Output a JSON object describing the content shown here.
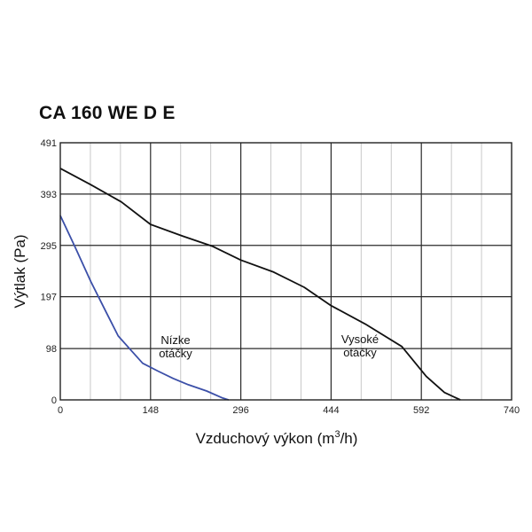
{
  "chart_data": {
    "type": "line",
    "title": "CA 160 WE D E",
    "xlabel_main": "Vzduchový výkon (m",
    "xlabel_sup": "3",
    "xlabel_end": "/h)",
    "ylabel": "Výtlak (Pa)",
    "xlim": [
      0,
      740
    ],
    "ylim": [
      0,
      491
    ],
    "x_ticks": [
      0,
      148,
      296,
      444,
      592,
      740
    ],
    "y_ticks": [
      0,
      98,
      197,
      295,
      393,
      491
    ],
    "grid": true,
    "series": [
      {
        "name": "Vysoké otáčky",
        "color": "#111111",
        "points": [
          [
            0,
            442
          ],
          [
            50,
            411
          ],
          [
            100,
            378
          ],
          [
            148,
            335
          ],
          [
            200,
            313
          ],
          [
            250,
            293
          ],
          [
            296,
            267
          ],
          [
            350,
            244
          ],
          [
            400,
            215
          ],
          [
            444,
            180
          ],
          [
            500,
            145
          ],
          [
            560,
            102
          ],
          [
            600,
            45
          ],
          [
            630,
            14
          ],
          [
            656,
            0
          ]
        ]
      },
      {
        "name": "Nízke otáčky",
        "color": "#3b4fa8",
        "points": [
          [
            0,
            352
          ],
          [
            25,
            290
          ],
          [
            50,
            226
          ],
          [
            75,
            168
          ],
          [
            95,
            122
          ],
          [
            115,
            96
          ],
          [
            135,
            70
          ],
          [
            160,
            55
          ],
          [
            185,
            41
          ],
          [
            210,
            29
          ],
          [
            240,
            17
          ],
          [
            265,
            4
          ],
          [
            276,
            0
          ]
        ]
      }
    ],
    "annotations": [
      {
        "lines": [
          "Nízke",
          "otáčky"
        ]
      },
      {
        "lines": [
          "Vysoké",
          "otáčky"
        ]
      }
    ]
  }
}
